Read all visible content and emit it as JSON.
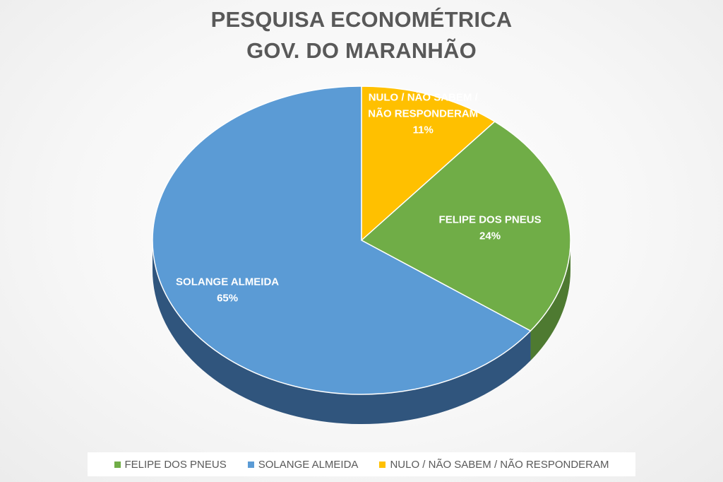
{
  "title": {
    "line1": "PESQUISA ECONOMÉTRICA",
    "line2": "GOV. DO MARANHÃO"
  },
  "chart_data": {
    "type": "pie",
    "style": "3d",
    "title": "PESQUISA ECONOMÉTRICA GOV. DO MARANHÃO",
    "slices": [
      {
        "label_lines": [
          "NULO / NÃO SABEM /",
          "NÃO RESPONDERAM"
        ],
        "pct_label": "11%",
        "value": 11,
        "color": "#FFC000",
        "side": "#C09000"
      },
      {
        "label_lines": [
          "FELIPE DOS PNEUS"
        ],
        "pct_label": "24%",
        "value": 24,
        "color": "#70AD47",
        "side": "#4E7A31"
      },
      {
        "label_lines": [
          "SOLANGE ALMEIDA"
        ],
        "pct_label": "65%",
        "value": 65,
        "color": "#5B9BD5",
        "side": "#30557D"
      }
    ],
    "legend": {
      "position": "bottom",
      "entries": [
        {
          "label": "FELIPE DOS PNEUS",
          "color": "#70AD47"
        },
        {
          "label": "SOLANGE ALMEIDA",
          "color": "#5B9BD5"
        },
        {
          "label": "NULO / NÃO SABEM / NÃO RESPONDERAM",
          "color": "#FFC000"
        }
      ]
    }
  }
}
